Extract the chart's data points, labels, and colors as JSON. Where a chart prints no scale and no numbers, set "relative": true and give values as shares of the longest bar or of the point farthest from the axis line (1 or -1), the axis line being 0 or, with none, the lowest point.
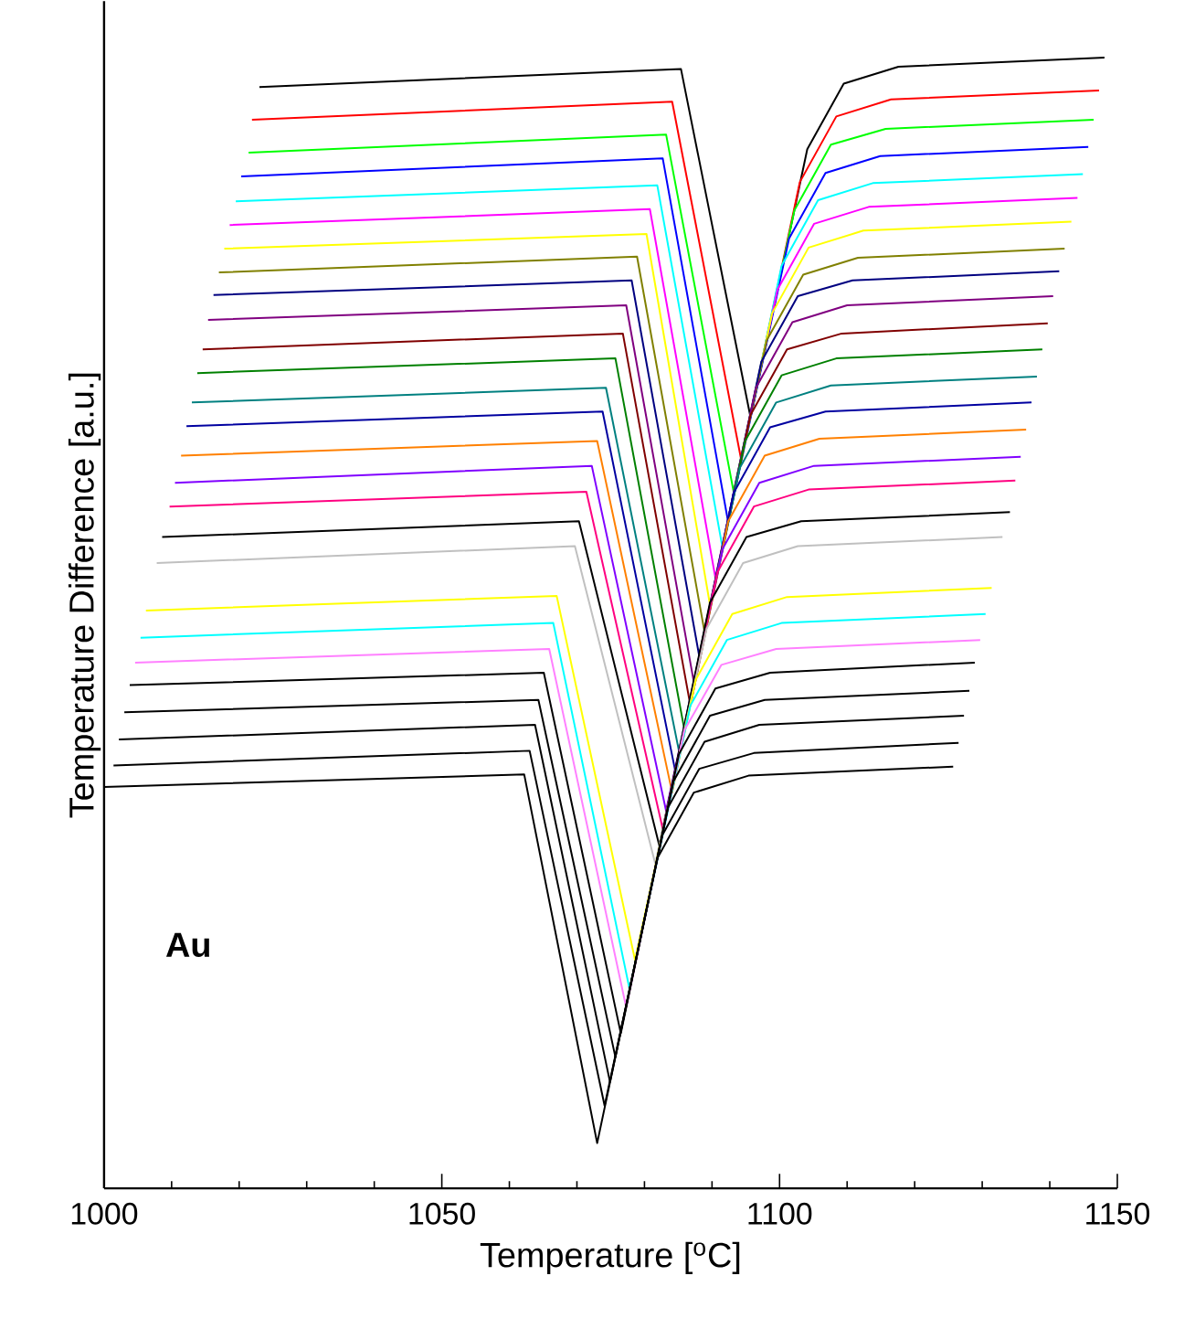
{
  "chart_data": {
    "type": "line",
    "xlabel": "Temperature  [$^{o}$C]",
    "ylabel": "Temperature Difference  [a.u.]",
    "annotations": [
      "Au"
    ],
    "relative": true,
    "xlim": [
      1000,
      1150
    ],
    "xticks": [
      1000,
      1050,
      1100,
      1150
    ],
    "series": [
      {
        "color": "#000000",
        "x": [
          1023.0,
          1085.4,
          1095.7,
          1104.1,
          1109.5,
          1117.6,
          1148.1
        ],
        "values": [
          0.974,
          0.99,
          0.682,
          0.919,
          0.977,
          0.992,
          1.0
        ]
      },
      {
        "color": "#ff0000",
        "x": [
          1021.9,
          1084.1,
          1094.3,
          1103.0,
          1108.4,
          1116.5,
          1147.3
        ],
        "values": [
          0.945,
          0.961,
          0.645,
          0.89,
          0.948,
          0.963,
          0.971
        ]
      },
      {
        "color": "#00ff00",
        "x": [
          1021.4,
          1083.2,
          1093.2,
          1102.2,
          1107.6,
          1115.7,
          1146.5
        ],
        "values": [
          0.916,
          0.932,
          0.616,
          0.865,
          0.923,
          0.937,
          0.945
        ]
      },
      {
        "color": "#0000ff",
        "x": [
          1020.3,
          1082.7,
          1092.4,
          1101.4,
          1106.8,
          1114.9,
          1145.7
        ],
        "values": [
          0.895,
          0.911,
          0.589,
          0.84,
          0.898,
          0.913,
          0.921
        ]
      },
      {
        "color": "#00ffff",
        "x": [
          1019.5,
          1081.9,
          1091.6,
          1100.3,
          1105.7,
          1113.8,
          1144.9
        ],
        "values": [
          0.873,
          0.887,
          0.565,
          0.816,
          0.874,
          0.889,
          0.897
        ]
      },
      {
        "color": "#ff00ff",
        "x": [
          1018.6,
          1080.8,
          1090.5,
          1099.7,
          1105.1,
          1113.2,
          1144.1
        ],
        "values": [
          0.852,
          0.866,
          0.54,
          0.795,
          0.853,
          0.868,
          0.876
        ]
      },
      {
        "color": "#ffff00",
        "x": [
          1017.8,
          1080.3,
          1089.7,
          1098.9,
          1104.3,
          1112.4,
          1143.2
        ],
        "values": [
          0.831,
          0.844,
          0.516,
          0.774,
          0.832,
          0.847,
          0.855
        ]
      },
      {
        "color": "#808000",
        "x": [
          1017.0,
          1078.9,
          1088.9,
          1098.1,
          1103.5,
          1111.6,
          1142.2
        ],
        "values": [
          0.81,
          0.824,
          0.492,
          0.75,
          0.808,
          0.823,
          0.831
        ]
      },
      {
        "color": "#000080",
        "x": [
          1016.2,
          1078.1,
          1088.1,
          1097.3,
          1102.7,
          1110.8,
          1141.4
        ],
        "values": [
          0.79,
          0.803,
          0.471,
          0.731,
          0.789,
          0.803,
          0.811
        ]
      },
      {
        "color": "#800080",
        "x": [
          1015.4,
          1077.3,
          1087.3,
          1096.5,
          1101.9,
          1110.0,
          1140.5
        ],
        "values": [
          0.768,
          0.781,
          0.448,
          0.708,
          0.766,
          0.781,
          0.789
        ]
      },
      {
        "color": "#800000",
        "x": [
          1014.6,
          1076.8,
          1086.8,
          1095.7,
          1101.1,
          1109.2,
          1139.7
        ],
        "values": [
          0.742,
          0.756,
          0.427,
          0.684,
          0.742,
          0.756,
          0.765
        ]
      },
      {
        "color": "#008000",
        "x": [
          1013.8,
          1075.7,
          1085.9,
          1094.9,
          1100.3,
          1108.4,
          1138.9
        ],
        "values": [
          0.721,
          0.734,
          0.406,
          0.661,
          0.719,
          0.734,
          0.742
        ]
      },
      {
        "color": "#008080",
        "x": [
          1013.0,
          1074.3,
          1085.1,
          1094.1,
          1099.5,
          1107.6,
          1138.1
        ],
        "values": [
          0.695,
          0.708,
          0.387,
          0.637,
          0.695,
          0.71,
          0.718
        ]
      },
      {
        "color": "#0000a0",
        "x": [
          1012.2,
          1073.8,
          1084.6,
          1093.2,
          1098.6,
          1106.8,
          1137.3
        ],
        "values": [
          0.674,
          0.687,
          0.368,
          0.615,
          0.673,
          0.687,
          0.695
        ]
      },
      {
        "color": "#ff8000",
        "x": [
          1011.4,
          1073.0,
          1084.1,
          1092.4,
          1097.8,
          1105.9,
          1136.5
        ],
        "values": [
          0.648,
          0.661,
          0.35,
          0.59,
          0.648,
          0.663,
          0.671
        ]
      },
      {
        "color": "#8000ff",
        "x": [
          1010.5,
          1072.2,
          1083.2,
          1091.6,
          1097.0,
          1105.1,
          1135.7
        ],
        "values": [
          0.624,
          0.639,
          0.334,
          0.566,
          0.624,
          0.639,
          0.647
        ]
      },
      {
        "color": "#ff0080",
        "x": [
          1009.7,
          1071.4,
          1082.7,
          1090.8,
          1096.2,
          1104.3,
          1134.9
        ],
        "values": [
          0.603,
          0.616,
          0.318,
          0.545,
          0.603,
          0.618,
          0.626
        ]
      },
      {
        "color": "#000000",
        "x": [
          1008.6,
          1070.3,
          1082.2,
          1089.7,
          1095.1,
          1103.2,
          1134.1
        ],
        "values": [
          0.576,
          0.59,
          0.303,
          0.518,
          0.576,
          0.59,
          0.598
        ]
      },
      {
        "color": "#c0c0c0",
        "x": [
          1007.8,
          1069.7,
          1081.6,
          1089.2,
          1094.6,
          1102.7,
          1133.0
        ],
        "values": [
          0.553,
          0.568,
          0.287,
          0.495,
          0.553,
          0.568,
          0.576
        ]
      },
      {
        "color": "#ffff00",
        "x": [
          1006.2,
          1067.0,
          1078.6,
          1087.6,
          1093.0,
          1101.1,
          1131.4
        ],
        "values": [
          0.511,
          0.524,
          0.202,
          0.45,
          0.508,
          0.523,
          0.531
        ]
      },
      {
        "color": "#00ffff",
        "x": [
          1005.4,
          1066.5,
          1077.8,
          1086.8,
          1092.2,
          1100.3,
          1130.5
        ],
        "values": [
          0.487,
          0.5,
          0.176,
          0.427,
          0.485,
          0.5,
          0.508
        ]
      },
      {
        "color": "#ff80ff",
        "x": [
          1004.6,
          1065.9,
          1077.3,
          1085.9,
          1091.4,
          1099.5,
          1129.7
        ],
        "values": [
          0.465,
          0.477,
          0.16,
          0.405,
          0.463,
          0.477,
          0.485
        ]
      },
      {
        "color": "#000000",
        "x": [
          1003.8,
          1065.1,
          1076.5,
          1085.1,
          1090.5,
          1098.6,
          1128.9
        ],
        "values": [
          0.445,
          0.456,
          0.137,
          0.384,
          0.442,
          0.456,
          0.465
        ]
      },
      {
        "color": "#000000",
        "x": [
          1003.0,
          1064.3,
          1075.7,
          1084.3,
          1089.7,
          1097.8,
          1128.1
        ],
        "values": [
          0.421,
          0.432,
          0.116,
          0.36,
          0.418,
          0.432,
          0.44
        ]
      },
      {
        "color": "#000000",
        "x": [
          1002.2,
          1063.8,
          1074.9,
          1083.5,
          1088.9,
          1097.0,
          1127.3
        ],
        "values": [
          0.397,
          0.41,
          0.094,
          0.337,
          0.395,
          0.41,
          0.418
        ]
      },
      {
        "color": "#000000",
        "x": [
          1001.4,
          1063.0,
          1074.1,
          1082.7,
          1088.1,
          1096.2,
          1126.5
        ],
        "values": [
          0.374,
          0.387,
          0.073,
          0.313,
          0.371,
          0.385,
          0.394
        ]
      },
      {
        "color": "#000000",
        "x": [
          1000.0,
          1062.2,
          1073.0,
          1081.9,
          1087.3,
          1095.4,
          1125.7
        ],
        "values": [
          0.355,
          0.366,
          0.04,
          0.292,
          0.35,
          0.365,
          0.373
        ]
      }
    ]
  }
}
